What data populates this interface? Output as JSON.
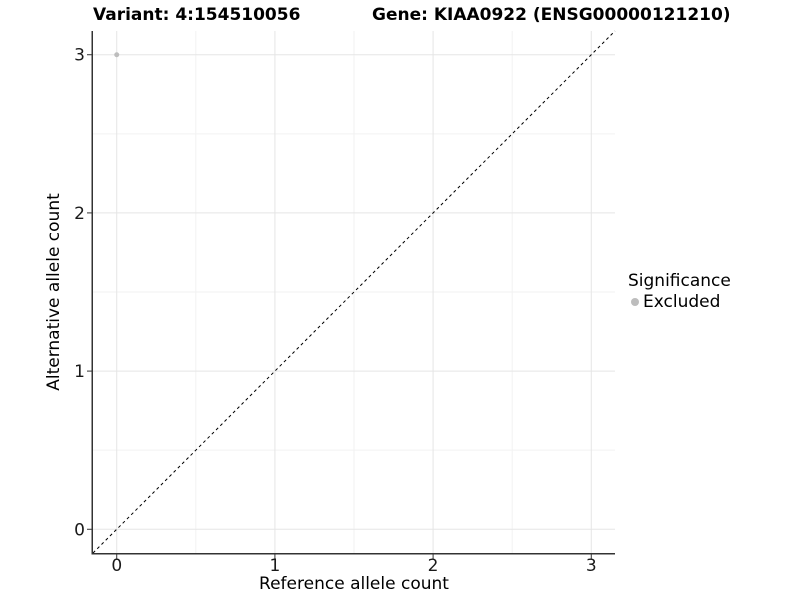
{
  "titles": {
    "left": "Variant: 4:154510056",
    "right": "Gene: KIAA0922 (ENSG00000121210)"
  },
  "chart_data": {
    "type": "scatter",
    "title": "Variant: 4:154510056  |  Gene: KIAA0922 (ENSG00000121210)",
    "xlabel": "Reference allele count",
    "ylabel": "Alternative allele count",
    "xlim": [
      -0.15,
      3.15
    ],
    "ylim": [
      -0.15,
      3.15
    ],
    "xticks": [
      0,
      1,
      2,
      3
    ],
    "yticks": [
      0,
      1,
      2,
      3
    ],
    "minor_ticks": [
      0.5,
      1.5,
      2.5
    ],
    "grid": "major+minor",
    "identity_line": {
      "style": "dashed",
      "slope": 1,
      "intercept": 0
    },
    "series": [
      {
        "name": "Excluded",
        "points": [
          {
            "x": 0,
            "y": 3
          }
        ]
      }
    ],
    "series_colors": {
      "Excluded": "#bdbdbd"
    },
    "legend": {
      "title": "Significance",
      "position": "right",
      "items": [
        {
          "label": "Excluded",
          "color": "#bdbdbd"
        }
      ]
    }
  },
  "colors": {
    "background": "#ffffff",
    "grid_major": "#e5e5e5",
    "grid_minor": "#f2f2f2",
    "axis_line": "#333333",
    "tick_mark": "#333333",
    "tick_label": "#1a1a1a",
    "dashed_line": "#000000"
  }
}
